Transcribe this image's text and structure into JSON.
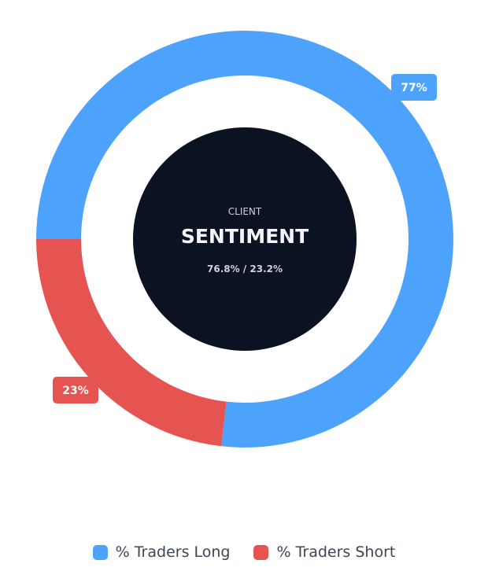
{
  "chart_data": {
    "type": "pie",
    "variant": "donut",
    "categories": [
      "% Traders Long",
      "% Traders Short"
    ],
    "values": [
      76.8,
      23.2
    ],
    "data_labels": [
      "77%",
      "23%"
    ],
    "colors": [
      "#4da3fc",
      "#e65452"
    ],
    "center": {
      "line1": "CLIENT",
      "line2": "SENTIMENT",
      "line3": "76.8% / 23.2%",
      "background": "#0b1222"
    },
    "legend": {
      "position": "bottom",
      "items": [
        {
          "label": "% Traders Long",
          "color": "#4da3fc"
        },
        {
          "label": "% Traders Short",
          "color": "#e65452"
        }
      ]
    }
  }
}
